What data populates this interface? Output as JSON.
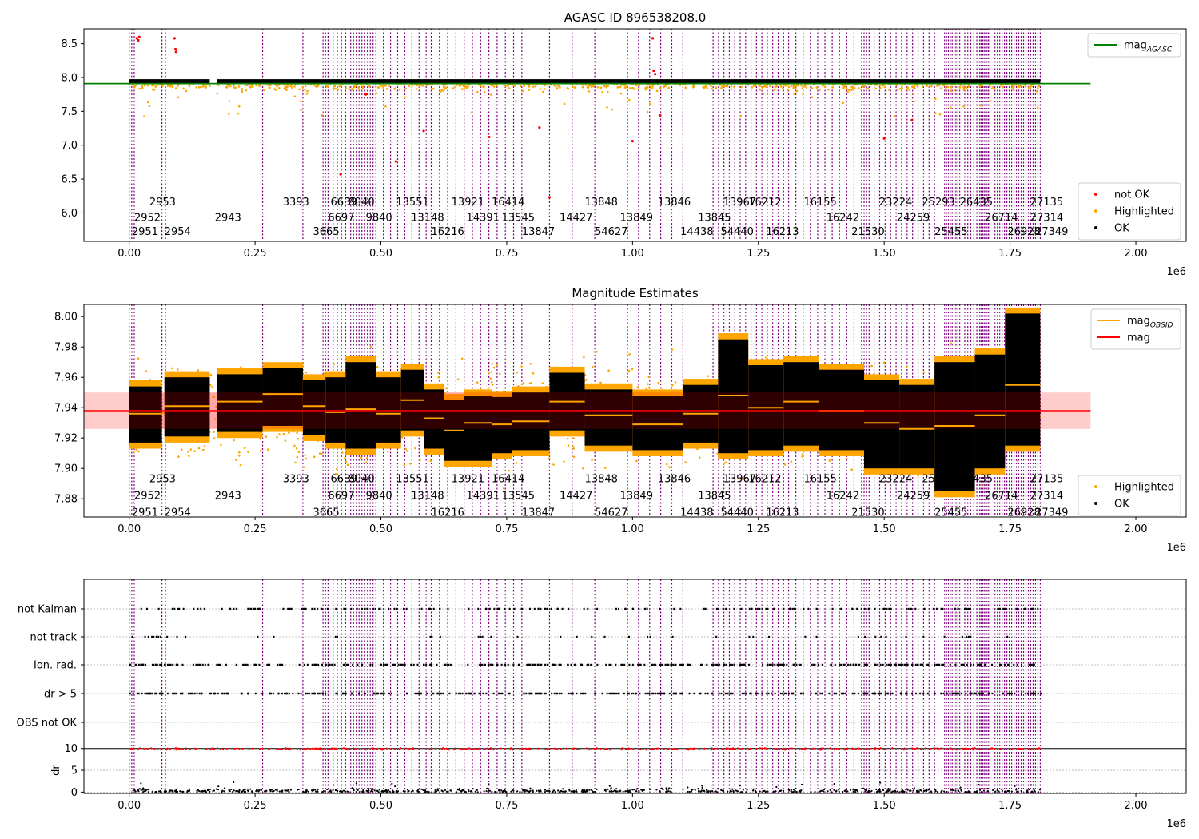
{
  "figure": {
    "colors": {
      "ok": "#000000",
      "highlighted": "#ffa500",
      "not_ok": "#ff0000",
      "mag_agasc_line": "#008000",
      "mag_line": "#ff0000",
      "mag_band": "#ffcccc",
      "obs_line": "#800080",
      "grid": "#b0b0b0"
    }
  },
  "chart_data": [
    {
      "type": "scatter",
      "title": "AGASC ID 896538208.0",
      "xlim": [
        -90000,
        2100000
      ],
      "ylim": [
        5.58,
        8.72
      ],
      "xticks": [
        0,
        250000,
        500000,
        750000,
        1000000,
        1250000,
        1500000,
        1750000,
        2000000
      ],
      "xticklabels": [
        "0.00",
        "0.25",
        "0.50",
        "0.75",
        "1.00",
        "1.25",
        "1.50",
        "1.75",
        "2.00"
      ],
      "yticks": [
        6.0,
        6.5,
        7.0,
        7.5,
        8.0,
        8.5
      ],
      "yticklabels": [
        "6.0",
        "6.5",
        "7.0",
        "7.5",
        "8.0",
        "8.5"
      ],
      "x_multiplier": "1e6",
      "legend_position": "upper right + lower right",
      "legend_top": [
        {
          "name": "mag",
          "sub": "AGASC",
          "color": "#008000"
        }
      ],
      "legend_bottom": [
        {
          "name": "not OK",
          "color": "#ff0000"
        },
        {
          "name": "Highlighted",
          "color": "#ffa500"
        },
        {
          "name": "OK",
          "color": "#000000"
        }
      ],
      "mag_agasc": 7.91,
      "mag_agasc_x": [
        -90000,
        1910000
      ],
      "ok_band": {
        "center": 7.94,
        "half_width": 0.035,
        "x": [
          0,
          1810000
        ]
      },
      "obs_labels": [
        {
          "x": 5000,
          "y": 5.72,
          "text": "2951"
        },
        {
          "x": 10000,
          "y": 5.93,
          "text": "2952"
        },
        {
          "x": 40000,
          "y": 6.16,
          "text": "2953"
        },
        {
          "x": 70000,
          "y": 5.72,
          "text": "2954"
        },
        {
          "x": 170000,
          "y": 5.93,
          "text": "2943"
        },
        {
          "x": 305000,
          "y": 6.16,
          "text": "3393"
        },
        {
          "x": 365000,
          "y": 5.72,
          "text": "3665"
        },
        {
          "x": 395000,
          "y": 5.93,
          "text": "6697"
        },
        {
          "x": 400000,
          "y": 6.16,
          "text": "6639"
        },
        {
          "x": 435000,
          "y": 6.16,
          "text": "8040"
        },
        {
          "x": 470000,
          "y": 5.93,
          "text": "9840"
        },
        {
          "x": 530000,
          "y": 6.16,
          "text": "13551"
        },
        {
          "x": 560000,
          "y": 5.93,
          "text": "13148"
        },
        {
          "x": 600000,
          "y": 5.72,
          "text": "16216"
        },
        {
          "x": 640000,
          "y": 6.16,
          "text": "13921"
        },
        {
          "x": 670000,
          "y": 5.93,
          "text": "14391"
        },
        {
          "x": 720000,
          "y": 6.16,
          "text": "16414"
        },
        {
          "x": 740000,
          "y": 5.93,
          "text": "13545"
        },
        {
          "x": 780000,
          "y": 5.72,
          "text": "13847"
        },
        {
          "x": 855000,
          "y": 5.93,
          "text": "14427"
        },
        {
          "x": 905000,
          "y": 6.16,
          "text": "13848"
        },
        {
          "x": 925000,
          "y": 5.72,
          "text": "54627"
        },
        {
          "x": 975000,
          "y": 5.93,
          "text": "13849"
        },
        {
          "x": 1050000,
          "y": 6.16,
          "text": "13846"
        },
        {
          "x": 1095000,
          "y": 5.72,
          "text": "14438"
        },
        {
          "x": 1130000,
          "y": 5.93,
          "text": "13845"
        },
        {
          "x": 1180000,
          "y": 6.16,
          "text": "13967"
        },
        {
          "x": 1175000,
          "y": 5.72,
          "text": "54440"
        },
        {
          "x": 1230000,
          "y": 6.16,
          "text": "16212"
        },
        {
          "x": 1265000,
          "y": 5.72,
          "text": "16213"
        },
        {
          "x": 1340000,
          "y": 6.16,
          "text": "16155"
        },
        {
          "x": 1385000,
          "y": 5.93,
          "text": "16242"
        },
        {
          "x": 1435000,
          "y": 5.72,
          "text": "21530"
        },
        {
          "x": 1490000,
          "y": 6.16,
          "text": "23224"
        },
        {
          "x": 1525000,
          "y": 5.93,
          "text": "24259"
        },
        {
          "x": 1575000,
          "y": 6.16,
          "text": "25293"
        },
        {
          "x": 1600000,
          "y": 5.72,
          "text": "25455"
        },
        {
          "x": 1650000,
          "y": 6.16,
          "text": "26435"
        },
        {
          "x": 1700000,
          "y": 5.93,
          "text": "26714"
        },
        {
          "x": 1745000,
          "y": 5.72,
          "text": "26928"
        },
        {
          "x": 1790000,
          "y": 6.16,
          "text": "27135"
        },
        {
          "x": 1790000,
          "y": 5.93,
          "text": "27314"
        },
        {
          "x": 1800000,
          "y": 5.72,
          "text": "27349"
        }
      ],
      "not_ok_points": [
        {
          "x": 15000,
          "y": 8.58
        },
        {
          "x": 18000,
          "y": 8.55
        },
        {
          "x": 20000,
          "y": 8.6
        },
        {
          "x": 90000,
          "y": 8.58
        },
        {
          "x": 92000,
          "y": 8.42
        },
        {
          "x": 93000,
          "y": 8.38
        },
        {
          "x": 420000,
          "y": 6.57
        },
        {
          "x": 470000,
          "y": 7.75
        },
        {
          "x": 530000,
          "y": 6.76
        },
        {
          "x": 585000,
          "y": 7.21
        },
        {
          "x": 715000,
          "y": 7.12
        },
        {
          "x": 815000,
          "y": 7.26
        },
        {
          "x": 835000,
          "y": 6.23
        },
        {
          "x": 1000000,
          "y": 7.06
        },
        {
          "x": 1040000,
          "y": 8.58
        },
        {
          "x": 1042000,
          "y": 8.1
        },
        {
          "x": 1045000,
          "y": 8.05
        },
        {
          "x": 1055000,
          "y": 7.44
        },
        {
          "x": 1500000,
          "y": 7.1
        },
        {
          "x": 1555000,
          "y": 7.37
        }
      ]
    },
    {
      "type": "scatter",
      "title": "Magnitude Estimates",
      "xlim": [
        -90000,
        2100000
      ],
      "ylim": [
        7.868,
        8.008
      ],
      "xticks": [
        0,
        250000,
        500000,
        750000,
        1000000,
        1250000,
        1500000,
        1750000,
        2000000
      ],
      "xticklabels": [
        "0.00",
        "0.25",
        "0.50",
        "0.75",
        "1.00",
        "1.25",
        "1.50",
        "1.75",
        "2.00"
      ],
      "yticks": [
        7.88,
        7.9,
        7.92,
        7.94,
        7.96,
        7.98,
        8.0
      ],
      "yticklabels": [
        "7.88",
        "7.90",
        "7.92",
        "7.94",
        "7.96",
        "7.98",
        "8.00"
      ],
      "x_multiplier": "1e6",
      "legend_position": "upper right + lower right",
      "legend_top": [
        {
          "name": "mag",
          "sub": "OBSID",
          "color": "#ffa500"
        },
        {
          "name": "mag",
          "sub": "",
          "color": "#ff0000"
        }
      ],
      "legend_bottom": [
        {
          "name": "Highlighted",
          "color": "#ffa500"
        },
        {
          "name": "OK",
          "color": "#000000"
        }
      ],
      "mag": 7.938,
      "mag_band": [
        7.926,
        7.95
      ],
      "mag_x": [
        -90000,
        1910000
      ],
      "obs_mag": [
        {
          "x0": 0,
          "x1": 65000,
          "mag": 7.936
        },
        {
          "x0": 70000,
          "x1": 160000,
          "mag": 7.941
        },
        {
          "x0": 175000,
          "x1": 265000,
          "mag": 7.944
        },
        {
          "x0": 265000,
          "x1": 345000,
          "mag": 7.949
        },
        {
          "x0": 345000,
          "x1": 390000,
          "mag": 7.941
        },
        {
          "x0": 390000,
          "x1": 430000,
          "mag": 7.937
        },
        {
          "x0": 430000,
          "x1": 490000,
          "mag": 7.939
        },
        {
          "x0": 490000,
          "x1": 540000,
          "mag": 7.936
        },
        {
          "x0": 540000,
          "x1": 585000,
          "mag": 7.945
        },
        {
          "x0": 585000,
          "x1": 625000,
          "mag": 7.933
        },
        {
          "x0": 625000,
          "x1": 665000,
          "mag": 7.925
        },
        {
          "x0": 665000,
          "x1": 720000,
          "mag": 7.93
        },
        {
          "x0": 720000,
          "x1": 760000,
          "mag": 7.929
        },
        {
          "x0": 760000,
          "x1": 835000,
          "mag": 7.931
        },
        {
          "x0": 835000,
          "x1": 905000,
          "mag": 7.944
        },
        {
          "x0": 905000,
          "x1": 1000000,
          "mag": 7.935
        },
        {
          "x0": 1000000,
          "x1": 1100000,
          "mag": 7.929
        },
        {
          "x0": 1100000,
          "x1": 1170000,
          "mag": 7.936
        },
        {
          "x0": 1170000,
          "x1": 1230000,
          "mag": 7.948
        },
        {
          "x0": 1230000,
          "x1": 1300000,
          "mag": 7.94
        },
        {
          "x0": 1300000,
          "x1": 1370000,
          "mag": 7.944
        },
        {
          "x0": 1370000,
          "x1": 1460000,
          "mag": 7.938
        },
        {
          "x0": 1460000,
          "x1": 1530000,
          "mag": 7.93
        },
        {
          "x0": 1530000,
          "x1": 1600000,
          "mag": 7.926
        },
        {
          "x0": 1600000,
          "x1": 1680000,
          "mag": 7.928
        },
        {
          "x0": 1680000,
          "x1": 1740000,
          "mag": 7.935
        },
        {
          "x0": 1740000,
          "x1": 1810000,
          "mag": 7.955
        }
      ],
      "black_envelope": [
        {
          "x0": 0,
          "x1": 65000,
          "lo": 7.917,
          "hi": 7.954
        },
        {
          "x0": 70000,
          "x1": 160000,
          "lo": 7.921,
          "hi": 7.96
        },
        {
          "x0": 175000,
          "x1": 265000,
          "lo": 7.924,
          "hi": 7.962
        },
        {
          "x0": 265000,
          "x1": 345000,
          "lo": 7.928,
          "hi": 7.966
        },
        {
          "x0": 345000,
          "x1": 390000,
          "lo": 7.922,
          "hi": 7.958
        },
        {
          "x0": 390000,
          "x1": 430000,
          "lo": 7.917,
          "hi": 7.96
        },
        {
          "x0": 430000,
          "x1": 490000,
          "lo": 7.913,
          "hi": 7.97
        },
        {
          "x0": 490000,
          "x1": 540000,
          "lo": 7.917,
          "hi": 7.96
        },
        {
          "x0": 540000,
          "x1": 585000,
          "lo": 7.925,
          "hi": 7.965
        },
        {
          "x0": 585000,
          "x1": 625000,
          "lo": 7.913,
          "hi": 7.952
        },
        {
          "x0": 625000,
          "x1": 665000,
          "lo": 7.905,
          "hi": 7.945
        },
        {
          "x0": 665000,
          "x1": 720000,
          "lo": 7.905,
          "hi": 7.948
        },
        {
          "x0": 720000,
          "x1": 760000,
          "lo": 7.91,
          "hi": 7.947
        },
        {
          "x0": 760000,
          "x1": 835000,
          "lo": 7.912,
          "hi": 7.95
        },
        {
          "x0": 835000,
          "x1": 905000,
          "lo": 7.925,
          "hi": 7.963
        },
        {
          "x0": 905000,
          "x1": 1000000,
          "lo": 7.915,
          "hi": 7.952
        },
        {
          "x0": 1000000,
          "x1": 1100000,
          "lo": 7.912,
          "hi": 7.948
        },
        {
          "x0": 1100000,
          "x1": 1170000,
          "lo": 7.917,
          "hi": 7.955
        },
        {
          "x0": 1170000,
          "x1": 1230000,
          "lo": 7.91,
          "hi": 7.985
        },
        {
          "x0": 1230000,
          "x1": 1300000,
          "lo": 7.912,
          "hi": 7.968
        },
        {
          "x0": 1300000,
          "x1": 1370000,
          "lo": 7.915,
          "hi": 7.97
        },
        {
          "x0": 1370000,
          "x1": 1460000,
          "lo": 7.912,
          "hi": 7.965
        },
        {
          "x0": 1460000,
          "x1": 1530000,
          "lo": 7.9,
          "hi": 7.958
        },
        {
          "x0": 1530000,
          "x1": 1600000,
          "lo": 7.9,
          "hi": 7.955
        },
        {
          "x0": 1600000,
          "x1": 1680000,
          "lo": 7.885,
          "hi": 7.97
        },
        {
          "x0": 1680000,
          "x1": 1740000,
          "lo": 7.9,
          "hi": 7.975
        },
        {
          "x0": 1740000,
          "x1": 1810000,
          "lo": 7.915,
          "hi": 8.002
        }
      ],
      "obs_labels": [
        {
          "x": 5000,
          "y": 7.871,
          "text": "2951"
        },
        {
          "x": 10000,
          "y": 7.882,
          "text": "2952"
        },
        {
          "x": 40000,
          "y": 7.893,
          "text": "2953"
        },
        {
          "x": 70000,
          "y": 7.871,
          "text": "2954"
        },
        {
          "x": 170000,
          "y": 7.882,
          "text": "2943"
        },
        {
          "x": 305000,
          "y": 7.893,
          "text": "3393"
        },
        {
          "x": 365000,
          "y": 7.871,
          "text": "3665"
        },
        {
          "x": 395000,
          "y": 7.882,
          "text": "6697"
        },
        {
          "x": 400000,
          "y": 7.893,
          "text": "6639"
        },
        {
          "x": 435000,
          "y": 7.893,
          "text": "8040"
        },
        {
          "x": 470000,
          "y": 7.882,
          "text": "9840"
        },
        {
          "x": 530000,
          "y": 7.893,
          "text": "13551"
        },
        {
          "x": 560000,
          "y": 7.882,
          "text": "13148"
        },
        {
          "x": 600000,
          "y": 7.871,
          "text": "16216"
        },
        {
          "x": 640000,
          "y": 7.893,
          "text": "13921"
        },
        {
          "x": 670000,
          "y": 7.882,
          "text": "14391"
        },
        {
          "x": 720000,
          "y": 7.893,
          "text": "16414"
        },
        {
          "x": 740000,
          "y": 7.882,
          "text": "13545"
        },
        {
          "x": 780000,
          "y": 7.871,
          "text": "13847"
        },
        {
          "x": 855000,
          "y": 7.882,
          "text": "14427"
        },
        {
          "x": 905000,
          "y": 7.893,
          "text": "13848"
        },
        {
          "x": 925000,
          "y": 7.871,
          "text": "54627"
        },
        {
          "x": 975000,
          "y": 7.882,
          "text": "13849"
        },
        {
          "x": 1050000,
          "y": 7.893,
          "text": "13846"
        },
        {
          "x": 1095000,
          "y": 7.871,
          "text": "14438"
        },
        {
          "x": 1130000,
          "y": 7.882,
          "text": "13845"
        },
        {
          "x": 1180000,
          "y": 7.893,
          "text": "13967"
        },
        {
          "x": 1175000,
          "y": 7.871,
          "text": "54440"
        },
        {
          "x": 1230000,
          "y": 7.893,
          "text": "16212"
        },
        {
          "x": 1265000,
          "y": 7.871,
          "text": "16213"
        },
        {
          "x": 1340000,
          "y": 7.893,
          "text": "16155"
        },
        {
          "x": 1385000,
          "y": 7.882,
          "text": "16242"
        },
        {
          "x": 1435000,
          "y": 7.871,
          "text": "21530"
        },
        {
          "x": 1490000,
          "y": 7.893,
          "text": "23224"
        },
        {
          "x": 1525000,
          "y": 7.882,
          "text": "24259"
        },
        {
          "x": 1575000,
          "y": 7.893,
          "text": "25293"
        },
        {
          "x": 1600000,
          "y": 7.871,
          "text": "25455"
        },
        {
          "x": 1650000,
          "y": 7.893,
          "text": "26435"
        },
        {
          "x": 1700000,
          "y": 7.882,
          "text": "26714"
        },
        {
          "x": 1745000,
          "y": 7.871,
          "text": "26928"
        },
        {
          "x": 1790000,
          "y": 7.893,
          "text": "27135"
        },
        {
          "x": 1790000,
          "y": 7.882,
          "text": "27314"
        },
        {
          "x": 1800000,
          "y": 7.871,
          "text": "27349"
        }
      ]
    },
    {
      "type": "scatter",
      "title": "",
      "xlim": [
        -90000,
        2100000
      ],
      "xticks": [
        0,
        250000,
        500000,
        750000,
        1000000,
        1250000,
        1500000,
        1750000,
        2000000
      ],
      "xticklabels": [
        "0.00",
        "0.25",
        "0.50",
        "0.75",
        "1.00",
        "1.25",
        "1.50",
        "1.75",
        "2.00"
      ],
      "x_multiplier": "1e6",
      "flag_rows": [
        "not Kalman",
        "not track",
        "Ion. rad.",
        "dr > 5",
        "OBS not OK"
      ],
      "flag_density": [
        0.45,
        0.12,
        0.9,
        0.9,
        0.0
      ],
      "dr_panel": {
        "ylabel": "dr",
        "ylim": [
          -0.3,
          10.5
        ],
        "yticks": [
          0,
          5,
          10
        ],
        "yticklabels": [
          "0",
          "5",
          "10"
        ],
        "threshold": 10
      }
    }
  ]
}
